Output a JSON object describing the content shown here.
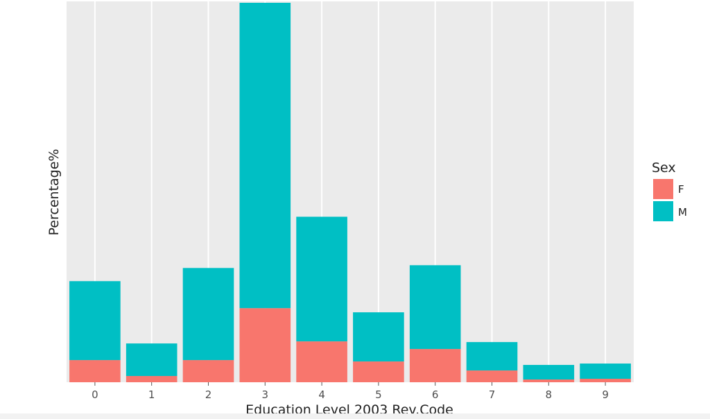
{
  "chart_data": {
    "type": "bar",
    "stacked": true,
    "title": "",
    "xlabel": "Education Level 2003 Rev.Code",
    "ylabel": "Percentage%",
    "categories": [
      "0",
      "1",
      "2",
      "3",
      "4",
      "5",
      "6",
      "7",
      "8",
      "9"
    ],
    "series": [
      {
        "name": "F",
        "color": "#F8766D",
        "values": [
          32,
          9,
          32,
          107,
          59,
          30,
          48,
          17,
          4,
          5
        ]
      },
      {
        "name": "M",
        "color": "#00BFC4",
        "values": [
          114,
          47,
          133,
          441,
          180,
          71,
          121,
          41,
          21,
          22
        ]
      }
    ],
    "ylim": [
      0,
      550
    ],
    "y_ticks_shown": false,
    "grid": true,
    "legend": {
      "title": "Sex",
      "position": "right",
      "entries": [
        "F",
        "M"
      ]
    },
    "panel_background": "#EBEBEB",
    "grid_color": "#FFFFFF"
  }
}
